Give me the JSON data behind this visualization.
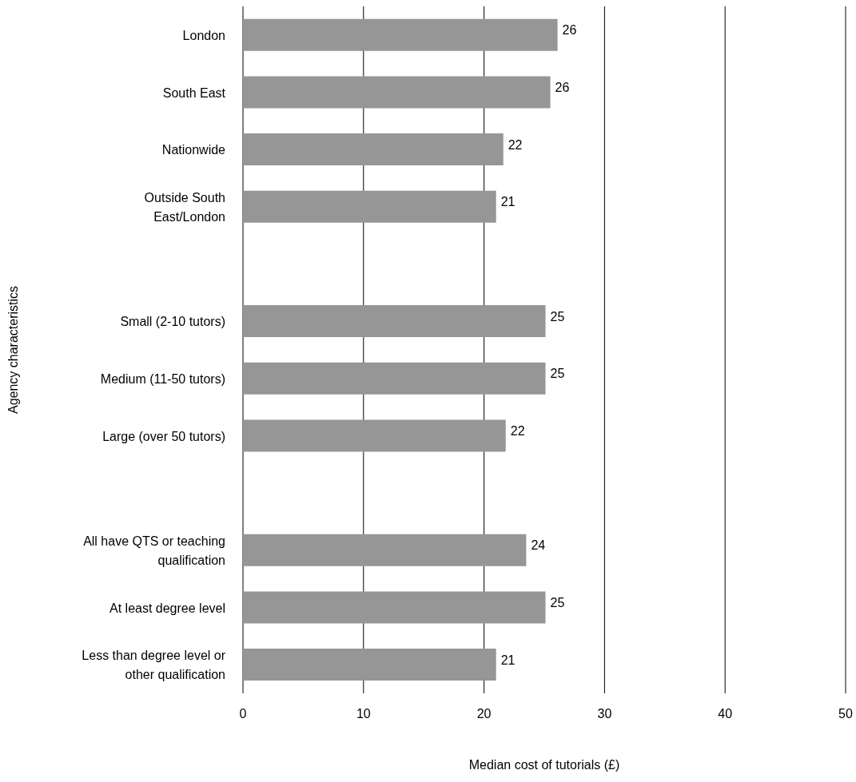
{
  "chart_data": {
    "type": "bar",
    "orientation": "horizontal",
    "xlabel": "Median cost of tutorials (£)",
    "ylabel": "Agency characteristics",
    "categories": [
      "London",
      "South East",
      "Nationwide",
      "Outside South\nEast/London",
      null,
      "Small (2-10 tutors)",
      "Medium (11-50 tutors)",
      "Large (over 50 tutors)",
      null,
      "All have QTS or teaching\nqualification",
      "At least degree level",
      "Less than degree level or\nother qualification"
    ],
    "values": [
      26.1,
      25.5,
      21.6,
      21.0,
      null,
      25.1,
      25.1,
      21.8,
      null,
      23.5,
      25.1,
      21.0
    ],
    "value_labels": [
      "26",
      "26",
      "22",
      "21",
      null,
      "25",
      "25",
      "22",
      null,
      "24",
      "25",
      "21"
    ],
    "color": "#969696",
    "xlim": [
      0,
      50
    ],
    "xticks": [
      0,
      10,
      20,
      30,
      40,
      50
    ],
    "grid": "x",
    "legend": false
  }
}
